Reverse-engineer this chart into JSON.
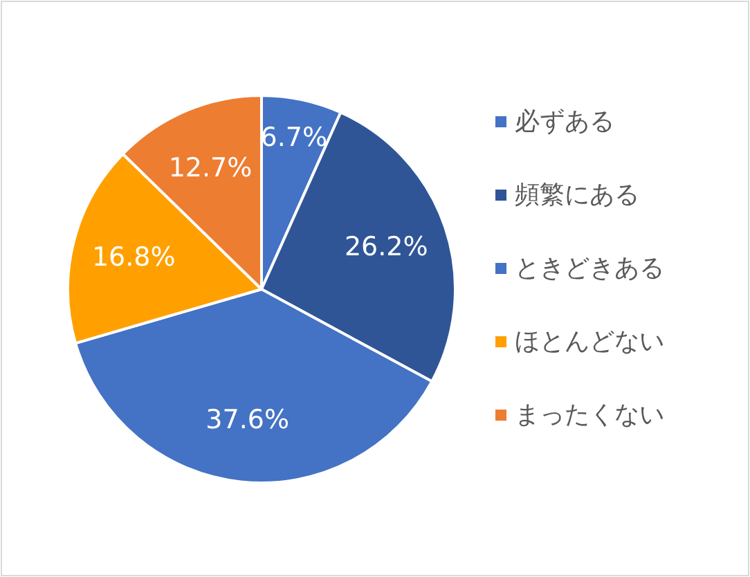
{
  "chart_data": {
    "type": "pie",
    "categories": [
      "必ずある",
      "頻繁にある",
      "ときどきある",
      "ほとんどない",
      "まったくない"
    ],
    "values": [
      6.7,
      26.2,
      37.6,
      16.8,
      12.7
    ],
    "colors": [
      "#4472c4",
      "#2f5597",
      "#4472c4",
      "#ffa000",
      "#ed7d31"
    ],
    "value_labels": [
      "6.7%",
      "26.2%",
      "37.6%",
      "16.8%",
      "12.7%"
    ],
    "legend": "right"
  }
}
